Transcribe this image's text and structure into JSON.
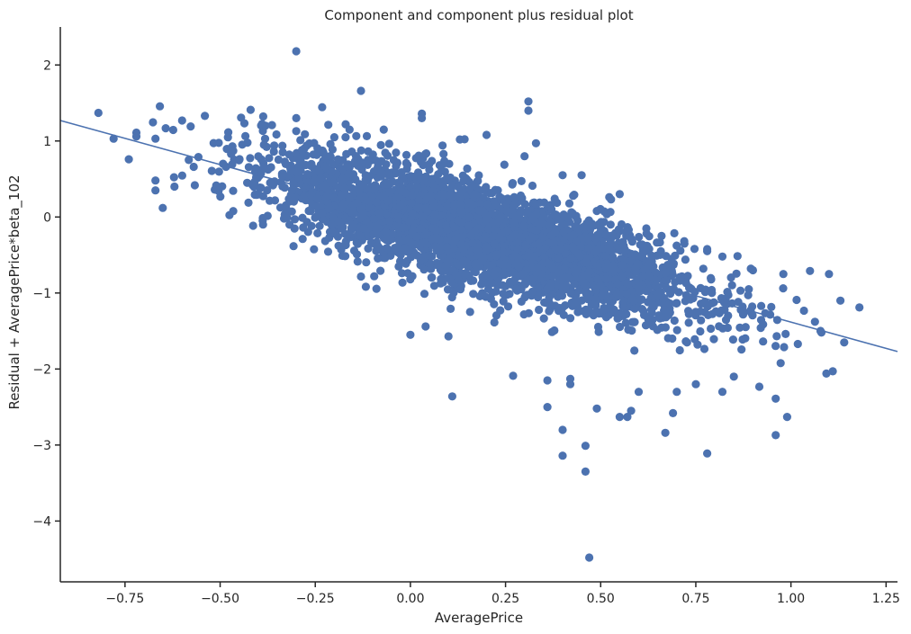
{
  "chart_data": {
    "type": "scatter",
    "title": "Component and component plus residual plot",
    "xlabel": "AveragePrice",
    "ylabel": "Residual + AveragePrice*beta_102",
    "xlim": [
      -0.92,
      1.28
    ],
    "ylim": [
      -4.8,
      2.5
    ],
    "xticks": [
      -0.75,
      -0.5,
      -0.25,
      0.0,
      0.25,
      0.5,
      0.75,
      1.0,
      1.25
    ],
    "xtick_labels": [
      "−0.75",
      "−0.50",
      "−0.25",
      "0.00",
      "0.25",
      "0.50",
      "0.75",
      "1.00",
      "1.25"
    ],
    "yticks": [
      2,
      1,
      0,
      -1,
      -2,
      -3,
      -4
    ],
    "ytick_labels": [
      "2",
      "1",
      "0",
      "−1",
      "−2",
      "−3",
      "−4"
    ],
    "grid": false,
    "point_color": "#4c72b0",
    "line_color": "#4c72b0",
    "fit_line": {
      "x": [
        -0.92,
        1.28
      ],
      "y": [
        1.27,
        -1.77
      ]
    },
    "trend": {
      "slope": -1.38,
      "intercept": 0.0,
      "noise_sd": 0.32
    },
    "series": [
      {
        "points": [
          [
            -0.82,
            1.37
          ],
          [
            -0.78,
            1.03
          ],
          [
            -0.74,
            0.76
          ],
          [
            -0.72,
            1.11
          ],
          [
            -0.72,
            1.06
          ],
          [
            -0.67,
            0.35
          ],
          [
            -0.67,
            0.48
          ],
          [
            -0.67,
            1.03
          ],
          [
            -0.62,
            0.4
          ],
          [
            -0.6,
            1.27
          ],
          [
            -0.54,
            1.33
          ],
          [
            -0.5,
            0.39
          ],
          [
            -0.42,
            1.41
          ],
          [
            -0.3,
            2.18
          ],
          [
            -0.3,
            1.3
          ],
          [
            -0.3,
            1.13
          ],
          [
            -0.2,
            1.05
          ],
          [
            -0.17,
            1.22
          ],
          [
            -0.16,
            1.15
          ],
          [
            -0.13,
            1.66
          ],
          [
            -0.07,
            1.15
          ],
          [
            0.03,
            1.36
          ],
          [
            0.03,
            1.3
          ],
          [
            0.13,
            1.02
          ],
          [
            0.2,
            1.08
          ],
          [
            0.31,
            1.52
          ],
          [
            0.31,
            1.4
          ],
          [
            0.33,
            0.97
          ],
          [
            0.0,
            -1.55
          ],
          [
            0.04,
            -1.44
          ],
          [
            0.1,
            -1.57
          ],
          [
            0.11,
            -2.36
          ],
          [
            0.27,
            -2.09
          ],
          [
            0.36,
            -2.15
          ],
          [
            0.36,
            -2.5
          ],
          [
            0.4,
            -2.8
          ],
          [
            0.4,
            -3.14
          ],
          [
            0.42,
            -2.13
          ],
          [
            0.42,
            -2.2
          ],
          [
            0.46,
            -3.01
          ],
          [
            0.46,
            -3.35
          ],
          [
            0.47,
            -4.48
          ],
          [
            0.49,
            -2.52
          ],
          [
            0.55,
            -2.63
          ],
          [
            0.57,
            -2.63
          ],
          [
            0.58,
            -2.55
          ],
          [
            0.67,
            -2.84
          ],
          [
            0.69,
            -2.58
          ],
          [
            0.78,
            -3.11
          ],
          [
            0.96,
            -2.87
          ],
          [
            0.96,
            -2.39
          ],
          [
            0.99,
            -2.63
          ],
          [
            1.08,
            -1.52
          ],
          [
            1.11,
            -2.03
          ],
          [
            1.14,
            -1.65
          ],
          [
            1.18,
            -1.19
          ],
          [
            1.13,
            -1.1
          ],
          [
            1.1,
            -0.75
          ],
          [
            1.05,
            -0.71
          ],
          [
            0.98,
            -0.75
          ],
          [
            0.9,
            -0.7
          ],
          [
            0.82,
            -0.52
          ],
          [
            0.78,
            -0.45
          ],
          [
            0.72,
            -0.35
          ],
          [
            0.66,
            -0.25
          ],
          [
            0.62,
            -0.15
          ],
          [
            0.55,
            0.3
          ],
          [
            0.45,
            0.55
          ],
          [
            0.4,
            0.55
          ],
          [
            0.3,
            0.8
          ],
          [
            0.6,
            -2.3
          ],
          [
            0.7,
            -2.3
          ],
          [
            0.75,
            -2.2
          ],
          [
            0.82,
            -2.3
          ],
          [
            0.85,
            -2.1
          ]
        ]
      }
    ],
    "generated_cloud_count": 3800
  }
}
